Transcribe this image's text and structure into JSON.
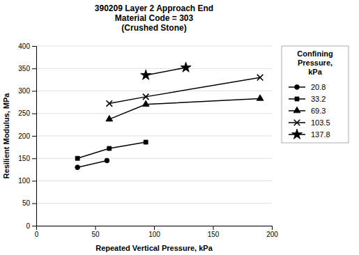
{
  "chart_data": {
    "type": "line",
    "title": "390209 Layer 2 Approach End\nMaterial Code = 303\n(Crushed Stone)",
    "x_label": "Repeated Vertical Pressure, kPa",
    "y_label": "Resilient Modulus, MPa",
    "legend_title": "Confining\nPressure,\nkPa",
    "legend": "right",
    "grid": "y",
    "xlim": [
      0,
      200
    ],
    "ylim": [
      0,
      400
    ],
    "xticks": [
      0,
      50,
      100,
      150,
      200
    ],
    "yticks": [
      0,
      50,
      100,
      150,
      200,
      250,
      300,
      350,
      400
    ],
    "series": [
      {
        "name": "20.8",
        "color": "#000000",
        "marker": "circle",
        "x": [
          35,
          60
        ],
        "values": [
          130,
          145
        ]
      },
      {
        "name": "33.2",
        "color": "#000000",
        "marker": "square",
        "x": [
          35,
          62,
          93
        ],
        "values": [
          150,
          172,
          186
        ]
      },
      {
        "name": "69.3",
        "color": "#000000",
        "marker": "triangle",
        "x": [
          62,
          93,
          190
        ],
        "values": [
          237,
          270,
          283
        ]
      },
      {
        "name": "103.5",
        "color": "#000000",
        "marker": "x",
        "x": [
          62,
          93,
          190
        ],
        "values": [
          272,
          287,
          330
        ]
      },
      {
        "name": "137.8",
        "color": "#000000",
        "marker": "star",
        "x": [
          93,
          127
        ],
        "values": [
          335,
          352
        ]
      }
    ]
  }
}
